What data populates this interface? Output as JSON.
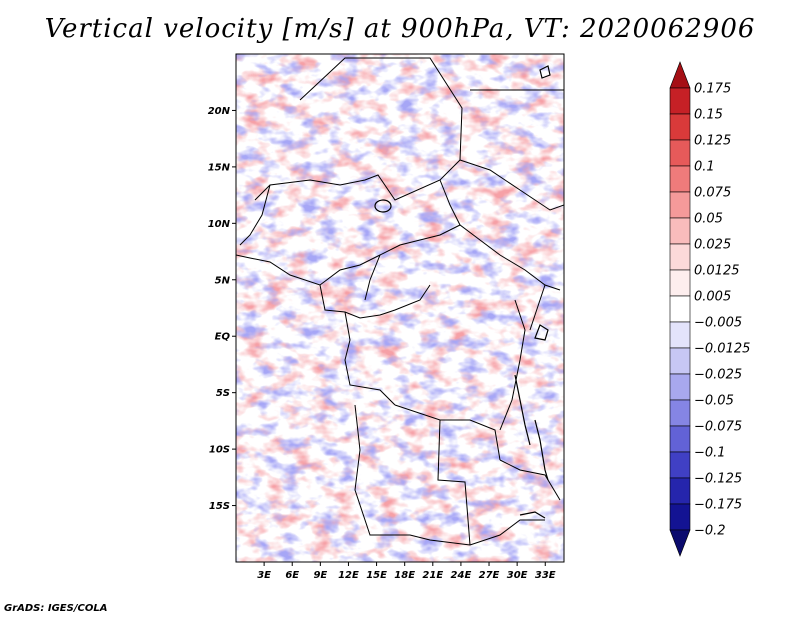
{
  "title": "Vertical velocity [m/s] at 900hPa, VT: 2020062906",
  "footer": "GrADS: IGES/COLA",
  "map": {
    "lat_labels": [
      "20N",
      "15N",
      "10N",
      "5N",
      "EQ",
      "5S",
      "10S",
      "15S"
    ],
    "lat_values": [
      20,
      15,
      10,
      5,
      0,
      -5,
      -10,
      -15
    ],
    "lon_labels": [
      "3E",
      "6E",
      "9E",
      "12E",
      "15E",
      "18E",
      "21E",
      "24E",
      "27E",
      "30E",
      "33E"
    ],
    "lon_values": [
      3,
      6,
      9,
      12,
      15,
      18,
      21,
      24,
      27,
      30,
      33
    ],
    "lon_range": [
      0,
      35
    ],
    "lat_range": [
      -20,
      25
    ]
  },
  "colorbar": {
    "labels": [
      "0.175",
      "0.15",
      "0.125",
      "0.1",
      "0.075",
      "0.05",
      "0.025",
      "0.0125",
      "0.005",
      "−0.005",
      "−0.0125",
      "−0.025",
      "−0.05",
      "−0.075",
      "−0.1",
      "−0.125",
      "−0.175",
      "−0.2"
    ],
    "colors": [
      "#a50f15",
      "#c62026",
      "#d93a3a",
      "#e65a5a",
      "#ef7b7b",
      "#f59a9a",
      "#f9bcbc",
      "#fcd9d9",
      "#fdeeee",
      "#ffffff",
      "#e3e3fb",
      "#c7c7f4",
      "#a8a8ee",
      "#8585e4",
      "#6262d6",
      "#4040c4",
      "#2525ac",
      "#131393",
      "#0b0b6e"
    ]
  }
}
